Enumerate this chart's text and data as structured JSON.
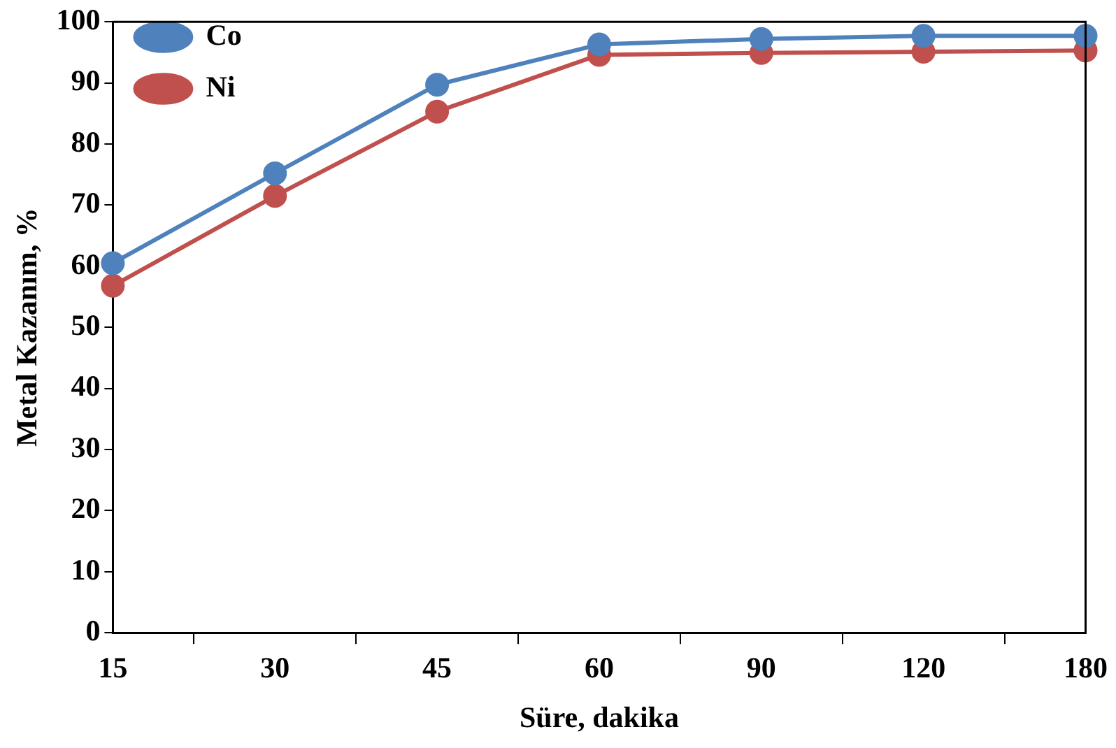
{
  "chart_data": {
    "type": "line",
    "xlabel": "Süre, dakika",
    "ylabel": "Metal Kazanım, %",
    "categories": [
      "15",
      "30",
      "45",
      "60",
      "90",
      "120",
      "180"
    ],
    "series": [
      {
        "name": "Co",
        "color": "#4f81bd",
        "values": [
          60.5,
          75.2,
          89.7,
          96.3,
          97.2,
          97.7,
          97.7
        ]
      },
      {
        "name": "Ni",
        "color": "#c0504d",
        "values": [
          56.8,
          71.5,
          85.3,
          94.6,
          94.9,
          95.1,
          95.3
        ]
      }
    ],
    "ylim": [
      0,
      100
    ],
    "yticks": [
      0,
      10,
      20,
      30,
      40,
      50,
      60,
      70,
      80,
      90,
      100
    ],
    "grid": false,
    "legend": "top left",
    "marker": "circle",
    "line_style": "solid"
  }
}
